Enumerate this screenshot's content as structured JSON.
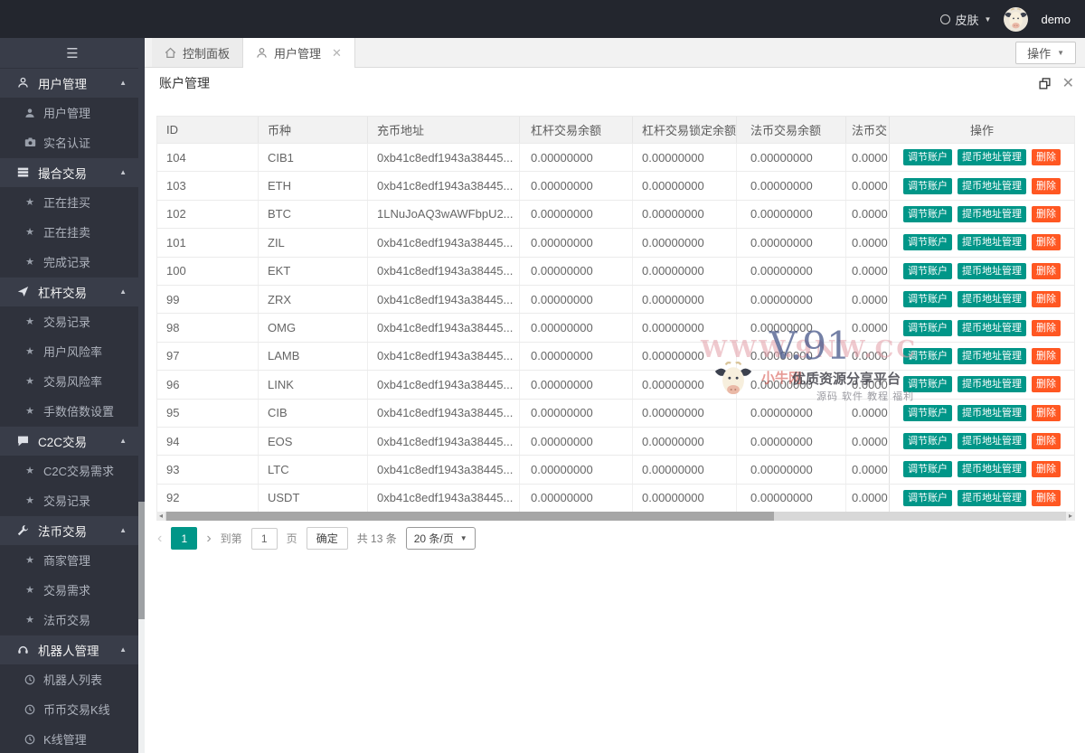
{
  "colors": {
    "primary_teal": "#009688",
    "danger_orange": "#FF5722",
    "topbar_bg": "#23262e",
    "sidebar_bg": "#393d49"
  },
  "topbar": {
    "skin_label": "皮肤",
    "username": "demo"
  },
  "sidebar": {
    "sections": [
      {
        "icon": "user-icon",
        "label": "用户管理",
        "children": [
          {
            "icon": "person-icon",
            "label": "用户管理"
          },
          {
            "icon": "idcard-icon",
            "label": "实名认证"
          }
        ]
      },
      {
        "icon": "grid-icon",
        "label": "撮合交易",
        "children": [
          {
            "icon": "star-icon",
            "label": "正在挂买"
          },
          {
            "icon": "star-icon",
            "label": "正在挂卖"
          },
          {
            "icon": "star-icon",
            "label": "完成记录"
          }
        ]
      },
      {
        "icon": "lever-icon",
        "label": "杠杆交易",
        "children": [
          {
            "icon": "star-icon",
            "label": "交易记录"
          },
          {
            "icon": "star-icon",
            "label": "用户风险率"
          },
          {
            "icon": "star-icon",
            "label": "交易风险率"
          },
          {
            "icon": "star-icon",
            "label": "手数倍数设置"
          }
        ]
      },
      {
        "icon": "chat-icon",
        "label": "C2C交易",
        "children": [
          {
            "icon": "star-icon",
            "label": "C2C交易需求"
          },
          {
            "icon": "star-icon",
            "label": "交易记录"
          }
        ]
      },
      {
        "icon": "wrench-icon",
        "label": "法币交易",
        "children": [
          {
            "icon": "star-icon",
            "label": "商家管理"
          },
          {
            "icon": "star-icon",
            "label": "交易需求"
          },
          {
            "icon": "star-icon",
            "label": "法币交易"
          }
        ]
      },
      {
        "icon": "headset-icon",
        "label": "机器人管理",
        "children": [
          {
            "icon": "clock-icon",
            "label": "机器人列表"
          },
          {
            "icon": "clock-icon",
            "label": "币币交易K线"
          },
          {
            "icon": "clock-icon",
            "label": "K线管理"
          }
        ]
      }
    ]
  },
  "tabs": {
    "items": [
      {
        "icon": "home-icon",
        "label": "控制面板",
        "active": false,
        "closable": false
      },
      {
        "icon": "tabuser-icon",
        "label": "用户管理",
        "active": true,
        "closable": true
      }
    ],
    "action_button": "操作"
  },
  "panel": {
    "title": "账户管理"
  },
  "table": {
    "columns": [
      "ID",
      "币种",
      "充币地址",
      "杠杆交易余额",
      "杠杆交易锁定余额",
      "法币交易余额",
      "法币交",
      "操作"
    ],
    "rows": [
      [
        "104",
        "CIB1",
        "0xb41c8edf1943a38445...",
        "0.00000000",
        "0.00000000",
        "0.00000000",
        "0.0000"
      ],
      [
        "103",
        "ETH",
        "0xb41c8edf1943a38445...",
        "0.00000000",
        "0.00000000",
        "0.00000000",
        "0.0000"
      ],
      [
        "102",
        "BTC",
        "1LNuJoAQ3wAWFbpU2...",
        "0.00000000",
        "0.00000000",
        "0.00000000",
        "0.0000"
      ],
      [
        "101",
        "ZIL",
        "0xb41c8edf1943a38445...",
        "0.00000000",
        "0.00000000",
        "0.00000000",
        "0.0000"
      ],
      [
        "100",
        "EKT",
        "0xb41c8edf1943a38445...",
        "0.00000000",
        "0.00000000",
        "0.00000000",
        "0.0000"
      ],
      [
        "99",
        "ZRX",
        "0xb41c8edf1943a38445...",
        "0.00000000",
        "0.00000000",
        "0.00000000",
        "0.0000"
      ],
      [
        "98",
        "OMG",
        "0xb41c8edf1943a38445...",
        "0.00000000",
        "0.00000000",
        "0.00000000",
        "0.0000"
      ],
      [
        "97",
        "LAMB",
        "0xb41c8edf1943a38445...",
        "0.00000000",
        "0.00000000",
        "0.00000000",
        "0.0000"
      ],
      [
        "96",
        "LINK",
        "0xb41c8edf1943a38445...",
        "0.00000000",
        "0.00000000",
        "0.00000000",
        "0.0000"
      ],
      [
        "95",
        "CIB",
        "0xb41c8edf1943a38445...",
        "0.00000000",
        "0.00000000",
        "0.00000000",
        "0.0000"
      ],
      [
        "94",
        "EOS",
        "0xb41c8edf1943a38445...",
        "0.00000000",
        "0.00000000",
        "0.00000000",
        "0.0000"
      ],
      [
        "93",
        "LTC",
        "0xb41c8edf1943a38445...",
        "0.00000000",
        "0.00000000",
        "0.00000000",
        "0.0000"
      ],
      [
        "92",
        "USDT",
        "0xb41c8edf1943a38445...",
        "0.00000000",
        "0.00000000",
        "0.00000000",
        "0.0000"
      ]
    ],
    "actions": [
      "调节账户",
      "提币地址管理",
      "删除"
    ]
  },
  "pagination": {
    "current_page": "1",
    "goto_label": "到第",
    "page_input": "1",
    "page_suffix": "页",
    "confirm_label": "确定",
    "total_label": "共 13 条",
    "page_size": "20 条/页"
  },
  "watermark": {
    "big_text": "WWW.9NW.CC",
    "overlay_text": "V.91",
    "brand_red": "小牛网",
    "slogan": "优质资源分享平台",
    "sub_slogan": "源码 软件 教程 福利"
  }
}
